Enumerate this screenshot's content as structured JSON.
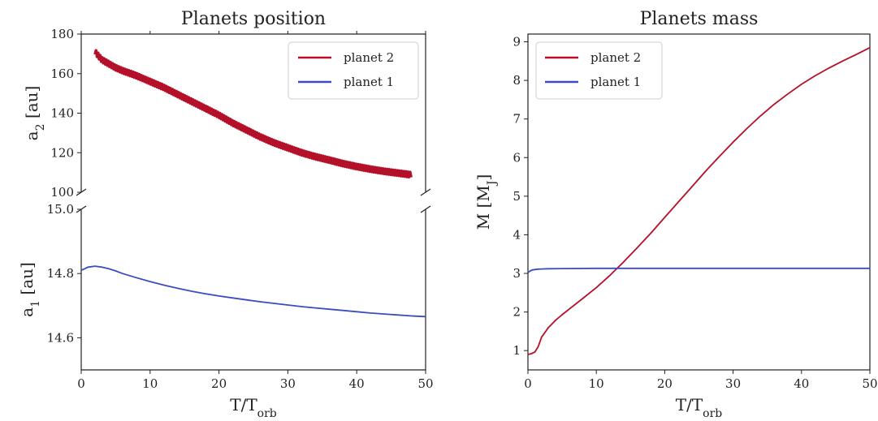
{
  "chart_data": [
    {
      "type": "line",
      "title": "Planets position",
      "xlabel": "T/T",
      "xlabel_sub": "orb",
      "xlim": [
        0,
        50
      ],
      "xticks": [
        0,
        10,
        20,
        30,
        40,
        50
      ],
      "broken_axis": true,
      "panels": [
        {
          "id": "upper",
          "ylabel": "a",
          "ylabel_sub": "2",
          "ylabel_unit": " [au]",
          "ylim": [
            100,
            180
          ],
          "yticks": [
            100,
            120,
            140,
            160,
            180
          ],
          "ytick_labels": [
            "100",
            "120",
            "140",
            "160",
            "180"
          ]
        },
        {
          "id": "lower",
          "ylabel": "a",
          "ylabel_sub": "1",
          "ylabel_unit": " [au]",
          "ylim": [
            14.5,
            15.0
          ],
          "yticks": [
            14.6,
            14.8,
            15.0
          ],
          "ytick_labels": [
            "14.6",
            "14.8",
            "15.0"
          ]
        }
      ],
      "series": [
        {
          "name": "planet 2",
          "color": "#b5102a",
          "panel": "upper",
          "noisy": true,
          "x": [
            2,
            3,
            4,
            5,
            6,
            8,
            10,
            12,
            14,
            16,
            18,
            20,
            22,
            24,
            26,
            28,
            30,
            32,
            34,
            36,
            38,
            40,
            42,
            44,
            46,
            48
          ],
          "y": [
            171,
            167,
            165,
            163,
            161.5,
            159,
            156,
            153,
            149.5,
            146,
            142.5,
            139,
            135,
            131.5,
            128,
            125,
            122.5,
            120,
            118,
            116.3,
            114.5,
            113,
            111.7,
            110.6,
            109.7,
            108.8
          ]
        },
        {
          "name": "planet 1",
          "color": "#3b4cc0",
          "panel": "lower",
          "x": [
            0,
            0.5,
            1,
            2,
            3,
            4,
            5,
            6,
            8,
            10,
            12,
            14,
            16,
            18,
            20,
            22,
            24,
            26,
            28,
            30,
            32,
            34,
            36,
            38,
            40,
            42,
            44,
            46,
            48,
            50
          ],
          "y": [
            14.81,
            14.815,
            14.82,
            14.823,
            14.82,
            14.815,
            14.808,
            14.8,
            14.787,
            14.775,
            14.764,
            14.754,
            14.745,
            14.737,
            14.73,
            14.724,
            14.718,
            14.712,
            14.707,
            14.702,
            14.697,
            14.693,
            14.689,
            14.685,
            14.681,
            14.677,
            14.674,
            14.671,
            14.668,
            14.666
          ]
        }
      ],
      "legend": {
        "position": "top-right",
        "entries": [
          "planet 2",
          "planet 1"
        ]
      }
    },
    {
      "type": "line",
      "title": "Planets mass",
      "xlabel": "T/T",
      "xlabel_sub": "orb",
      "ylabel": "M [M",
      "ylabel_sub": "J",
      "ylabel_close": "]",
      "xlim": [
        0,
        50
      ],
      "xticks": [
        0,
        10,
        20,
        30,
        40,
        50
      ],
      "ylim": [
        0.5,
        9.2
      ],
      "yticks": [
        1,
        2,
        3,
        4,
        5,
        6,
        7,
        8,
        9
      ],
      "series": [
        {
          "name": "planet 2",
          "color": "#b5102a",
          "x": [
            0,
            0.5,
            1,
            1.5,
            2,
            3,
            4,
            5,
            6,
            8,
            10,
            12,
            14,
            16,
            18,
            20,
            22,
            24,
            26,
            28,
            30,
            32,
            34,
            36,
            38,
            40,
            42,
            44,
            46,
            48,
            50
          ],
          "y": [
            0.9,
            0.92,
            0.96,
            1.1,
            1.35,
            1.6,
            1.78,
            1.93,
            2.07,
            2.35,
            2.63,
            2.95,
            3.3,
            3.67,
            4.05,
            4.45,
            4.85,
            5.25,
            5.65,
            6.03,
            6.4,
            6.75,
            7.08,
            7.38,
            7.65,
            7.9,
            8.12,
            8.32,
            8.5,
            8.67,
            8.85
          ]
        },
        {
          "name": "planet 1",
          "color": "#3b4cc0",
          "x": [
            0,
            0.3,
            0.6,
            1,
            1.5,
            2,
            3,
            5,
            10,
            20,
            30,
            40,
            50
          ],
          "y": [
            3.02,
            3.06,
            3.09,
            3.1,
            3.11,
            3.115,
            3.12,
            3.125,
            3.13,
            3.13,
            3.13,
            3.13,
            3.13
          ]
        }
      ],
      "legend": {
        "position": "top-left",
        "entries": [
          "planet 2",
          "planet 1"
        ]
      }
    }
  ]
}
